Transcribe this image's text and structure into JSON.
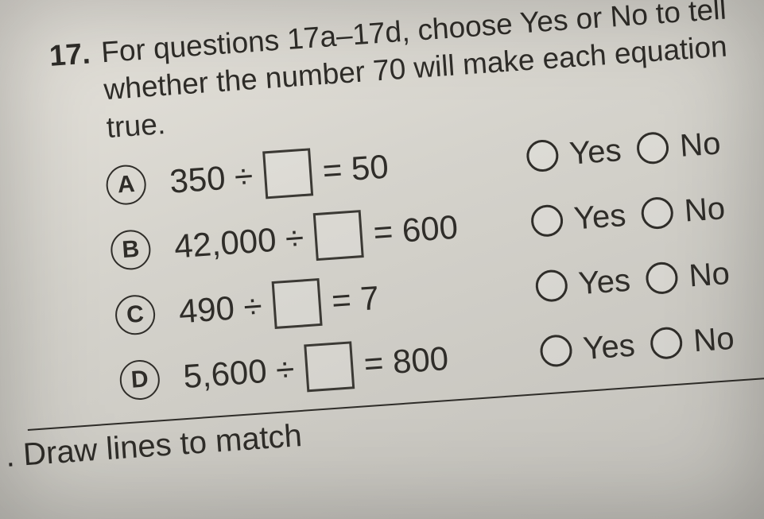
{
  "question": {
    "number": "17.",
    "prompt": "For questions 17a–17d, choose Yes or No to tell whether the number 70 will make each equation true."
  },
  "rows": [
    {
      "letter": "A",
      "lhs": "350 ÷",
      "rhs": "= 50"
    },
    {
      "letter": "B",
      "lhs": "42,000 ÷",
      "rhs": "= 600"
    },
    {
      "letter": "C",
      "lhs": "490 ÷",
      "rhs": "= 7"
    },
    {
      "letter": "D",
      "lhs": "5,600 ÷",
      "rhs": "= 800"
    }
  ],
  "labels": {
    "yes": "Yes",
    "no": "No"
  },
  "next_question_fragment": ". Draw lines to match",
  "colors": {
    "text": "#2f2d29",
    "paper_light": "#e6e3dc",
    "paper_dark": "#c2c0ba"
  }
}
